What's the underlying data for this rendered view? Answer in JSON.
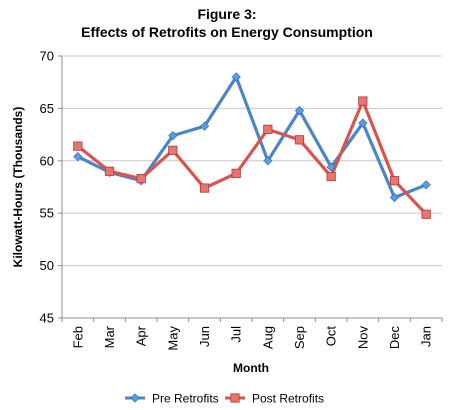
{
  "chart_data": {
    "type": "line",
    "title": "Figure 3:",
    "subtitle": "Effects of Retrofits on Energy Consumption",
    "xlabel": "Month",
    "ylabel": "Kilowatt-Hours (Thousands)",
    "categories": [
      "Feb",
      "Mar",
      "Apr",
      "May",
      "Jun",
      "Jul",
      "Aug",
      "Sep",
      "Oct",
      "Nov",
      "Dec",
      "Jan"
    ],
    "ylim": [
      45,
      70
    ],
    "yticks": [
      45,
      50,
      55,
      60,
      65,
      70
    ],
    "grid": "horizontal",
    "legend_position": "bottom",
    "series": [
      {
        "name": "Pre Retrofits",
        "color": "#4a86c6",
        "marker": "diamond",
        "values": [
          60.4,
          58.9,
          58.1,
          62.4,
          63.3,
          68.0,
          60.0,
          64.8,
          59.4,
          63.6,
          56.5,
          57.7
        ]
      },
      {
        "name": "Post Retrofits",
        "color": "#d9534f",
        "marker": "square",
        "values": [
          61.4,
          59.0,
          58.3,
          61.0,
          57.4,
          58.8,
          63.0,
          62.0,
          58.5,
          65.7,
          58.1,
          54.9
        ]
      }
    ]
  }
}
